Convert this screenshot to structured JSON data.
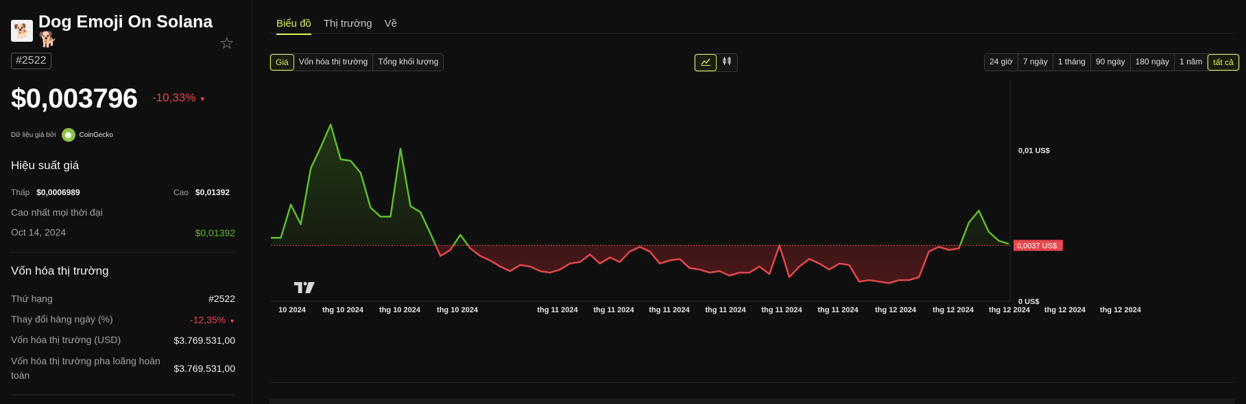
{
  "coin": {
    "logo_emoji": "🐕",
    "name": "Dog Emoji On Solana",
    "emoji": "🐕",
    "rank_badge": "#2522",
    "price": "$0,003796",
    "change_24h": "-10,33%",
    "source_label": "Dữ liệu giá bởi",
    "source_name": "CoinGecko"
  },
  "performance": {
    "title": "Hiệu suất giá",
    "low_label": "Thấp",
    "low_value": "$0,0006989",
    "high_label": "Cao",
    "high_value": "$0,01392",
    "ath_label": "Cao nhất mọi thời đại",
    "ath_date": "Oct 14, 2024",
    "ath_value": "$0,01392"
  },
  "market_cap": {
    "title": "Vốn hóa thị trường",
    "rows": [
      {
        "label": "Thứ hạng",
        "value": "#2522"
      },
      {
        "label": "Thay đổi hàng ngày (%)",
        "value": "-12,35%"
      },
      {
        "label": "Vốn hóa thị trường (USD)",
        "value": "$3.769.531,00"
      },
      {
        "label": "Vốn hóa thị trường pha loãng hoàn toàn",
        "value": "$3.769.531,00"
      }
    ]
  },
  "tabs": [
    "Biểu đồ",
    "Thị trường",
    "Về"
  ],
  "metric_buttons": [
    "Giá",
    "Vốn hóa thị trường",
    "Tổng khối lượng"
  ],
  "chart_type_icons": [
    "line-chart-icon",
    "candlestick-chart-icon"
  ],
  "range_buttons": [
    "24 giờ",
    "7 ngày",
    "1 tháng",
    "90 ngày",
    "180 ngày",
    "1 năm",
    "tất cả"
  ],
  "colors": {
    "accent": "#d9f35b",
    "up": "#5fbf2f",
    "down": "#e5484d"
  },
  "chart_data": {
    "type": "area",
    "baseline_value": 0.0037,
    "baseline_label": "0,0037 US$",
    "y_ticks": [
      {
        "value": 0.01,
        "label": "0,01 US$"
      },
      {
        "value": 0,
        "label": "0 US$"
      }
    ],
    "ylim": [
      0,
      0.0145
    ],
    "x_tick_labels": [
      "10 2024",
      "thg 10 2024",
      "thg 10 2024",
      "thg 10 2024",
      "thg 11 2024",
      "thg 11 2024",
      "thg 11 2024",
      "thg 11 2024",
      "thg 11 2024",
      "thg 11 2024",
      "thg 12 2024",
      "thg 12 2024",
      "thg 12 2024",
      "thg 12 2024",
      "thg 12 2024"
    ],
    "values": [
      0.0042,
      0.0042,
      0.0064,
      0.0051,
      0.0088,
      0.0102,
      0.0117,
      0.0094,
      0.0093,
      0.0085,
      0.0062,
      0.0056,
      0.0056,
      0.0101,
      0.0063,
      0.0059,
      0.0045,
      0.003,
      0.0034,
      0.0044,
      0.0035,
      0.003,
      0.0027,
      0.0023,
      0.002,
      0.0024,
      0.0023,
      0.002,
      0.0019,
      0.0021,
      0.0025,
      0.0026,
      0.0031,
      0.0025,
      0.0029,
      0.0026,
      0.0033,
      0.0036,
      0.0033,
      0.0025,
      0.0027,
      0.0028,
      0.0022,
      0.0021,
      0.0019,
      0.002,
      0.0017,
      0.0019,
      0.0019,
      0.0023,
      0.0018,
      0.0037,
      0.0016,
      0.0023,
      0.0028,
      0.0025,
      0.0021,
      0.0025,
      0.0024,
      0.0013,
      0.0014,
      0.0013,
      0.0012,
      0.0014,
      0.0014,
      0.0016,
      0.0033,
      0.0036,
      0.0034,
      0.0035,
      0.0052,
      0.006,
      0.0046,
      0.004,
      0.0038
    ]
  }
}
